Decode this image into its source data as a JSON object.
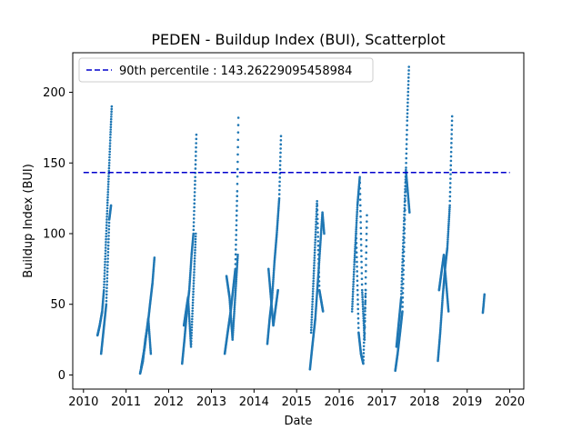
{
  "chart_data": {
    "type": "scatter",
    "title": "PEDEN - Buildup Index (BUI), Scatterplot",
    "xlabel": "Date",
    "ylabel": "Buildup Index (BUI)",
    "xlim": [
      "2009-10-01",
      "2020-04-30"
    ],
    "ylim": [
      -10,
      228
    ],
    "x_ticks": [
      "2010",
      "2011",
      "2012",
      "2013",
      "2014",
      "2015",
      "2016",
      "2017",
      "2018",
      "2019",
      "2020"
    ],
    "y_ticks": [
      0,
      50,
      100,
      150,
      200
    ],
    "grid": false,
    "legend": {
      "placement": "top-left",
      "entries": [
        "90th percentile : 143.26229095458984"
      ]
    },
    "threshold": {
      "name": "90th percentile : 143.26229095458984",
      "value": 143.26229095458984,
      "x_start": "2010-01-01",
      "x_end": "2020-01-01"
    },
    "colors": {
      "points": "#1f77b4",
      "threshold": "#0000cc"
    },
    "series": [
      {
        "segments": [
          {
            "x": [
              "2010-05-01",
              "2010-05-20",
              "2010-06-10",
              "2010-06-25",
              "2010-07-10",
              "2010-07-25",
              "2010-08-10",
              "2010-08-20",
              "2010-08-31"
            ],
            "y": [
              28,
              35,
              45,
              60,
              90,
              120,
              150,
              170,
              190
            ]
          },
          {
            "x": [
              "2010-06-01",
              "2010-06-20",
              "2010-07-15",
              "2010-08-10",
              "2010-08-25"
            ],
            "y": [
              15,
              30,
              50,
              110,
              120
            ]
          },
          {
            "x": [
              "2011-05-01",
              "2011-05-25",
              "2011-06-15",
              "2011-07-05",
              "2011-07-25",
              "2011-08-15",
              "2011-09-01"
            ],
            "y": [
              1,
              10,
              25,
              35,
              50,
              65,
              83
            ]
          },
          {
            "x": [
              "2011-05-10",
              "2011-06-10",
              "2011-07-10",
              "2011-08-01"
            ],
            "y": [
              5,
              20,
              40,
              15
            ]
          },
          {
            "x": [
              "2012-04-25",
              "2012-05-15",
              "2012-06-05",
              "2012-06-25",
              "2012-07-15",
              "2012-07-31",
              "2012-08-15",
              "2012-08-25"
            ],
            "y": [
              8,
              25,
              45,
              60,
              85,
              100,
              140,
              170
            ]
          },
          {
            "x": [
              "2012-05-10",
              "2012-06-15",
              "2012-07-10",
              "2012-08-20"
            ],
            "y": [
              35,
              55,
              20,
              100
            ]
          },
          {
            "x": [
              "2013-04-25",
              "2013-05-20",
              "2013-06-15",
              "2013-07-05",
              "2013-07-25",
              "2013-08-10",
              "2013-08-20"
            ],
            "y": [
              15,
              30,
              45,
              60,
              75,
              130,
              182
            ]
          },
          {
            "x": [
              "2013-05-10",
              "2013-06-05",
              "2013-07-01",
              "2013-08-15"
            ],
            "y": [
              70,
              55,
              25,
              85
            ]
          },
          {
            "x": [
              "2014-04-25",
              "2014-05-15",
              "2014-06-05",
              "2014-06-25",
              "2014-07-15",
              "2014-08-05",
              "2014-08-20"
            ],
            "y": [
              22,
              40,
              55,
              80,
              100,
              125,
              169
            ]
          },
          {
            "x": [
              "2014-05-05",
              "2014-06-15",
              "2014-07-25"
            ],
            "y": [
              75,
              35,
              60
            ]
          },
          {
            "x": [
              "2015-04-25",
              "2015-05-15",
              "2015-06-10",
              "2015-07-05",
              "2015-07-25",
              "2015-08-10",
              "2015-08-25"
            ],
            "y": [
              4,
              20,
              40,
              70,
              95,
              115,
              100
            ]
          },
          {
            "x": [
              "2015-05-05",
              "2015-06-25",
              "2015-07-15",
              "2015-08-15"
            ],
            "y": [
              30,
              123,
              60,
              45
            ]
          },
          {
            "x": [
              "2016-04-20",
              "2016-05-10",
              "2016-06-05",
              "2016-06-25",
              "2016-07-15",
              "2016-08-05",
              "2016-08-25"
            ],
            "y": [
              45,
              80,
              120,
              140,
              60,
              25,
              113
            ]
          },
          {
            "x": [
              "2016-05-25",
              "2016-06-15",
              "2016-07-05",
              "2016-07-25",
              "2016-08-15"
            ],
            "y": [
              100,
              30,
              15,
              8,
              60
            ]
          },
          {
            "x": [
              "2017-04-25",
              "2017-05-15",
              "2017-06-05",
              "2017-06-25",
              "2017-07-15",
              "2017-08-05",
              "2017-08-20"
            ],
            "y": [
              3,
              15,
              30,
              45,
              110,
              180,
              218
            ]
          },
          {
            "x": [
              "2017-05-05",
              "2017-06-15",
              "2017-07-25",
              "2017-08-25"
            ],
            "y": [
              20,
              55,
              145,
              115
            ]
          },
          {
            "x": [
              "2018-04-25",
              "2018-05-15",
              "2018-06-05",
              "2018-06-25",
              "2018-07-15",
              "2018-08-05",
              "2018-08-25"
            ],
            "y": [
              10,
              30,
              55,
              75,
              90,
              120,
              183
            ]
          },
          {
            "x": [
              "2018-05-05",
              "2018-06-15",
              "2018-07-25"
            ],
            "y": [
              60,
              85,
              45
            ]
          },
          {
            "x": [
              "2019-05-15",
              "2019-05-22",
              "2019-05-29"
            ],
            "y": [
              44,
              50,
              57
            ]
          }
        ]
      }
    ]
  }
}
